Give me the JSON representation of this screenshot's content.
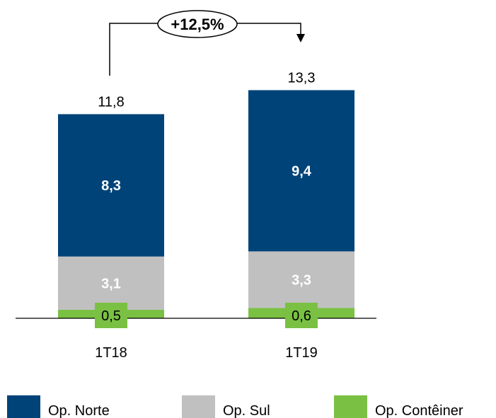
{
  "chart_data": {
    "type": "bar",
    "stacked": true,
    "categories": [
      "1T18",
      "1T19"
    ],
    "series": [
      {
        "name": "Op. Contêiner",
        "color": "#7AC143",
        "values": [
          0.5,
          0.6
        ],
        "labels": [
          "0,5",
          "0,6"
        ]
      },
      {
        "name": "Op. Sul",
        "color": "#C0C0C0",
        "values": [
          3.1,
          3.3
        ],
        "labels": [
          "3,1",
          "3,3"
        ]
      },
      {
        "name": "Op. Norte",
        "color": "#004379",
        "values": [
          8.3,
          9.4
        ],
        "labels": [
          "8,3",
          "9,4"
        ]
      }
    ],
    "totals": [
      11.8,
      13.3
    ],
    "total_labels": [
      "11,8",
      "13,3"
    ],
    "growth_label": "+12,5%",
    "legend": {
      "placement": "bottom",
      "items": [
        {
          "name": "Op. Norte",
          "color": "#004379"
        },
        {
          "name": "Op. Sul",
          "color": "#C0C0C0"
        },
        {
          "name": "Op. Contêiner",
          "color": "#7AC143"
        }
      ]
    },
    "grid": false,
    "xlabel": "",
    "ylabel": ""
  }
}
